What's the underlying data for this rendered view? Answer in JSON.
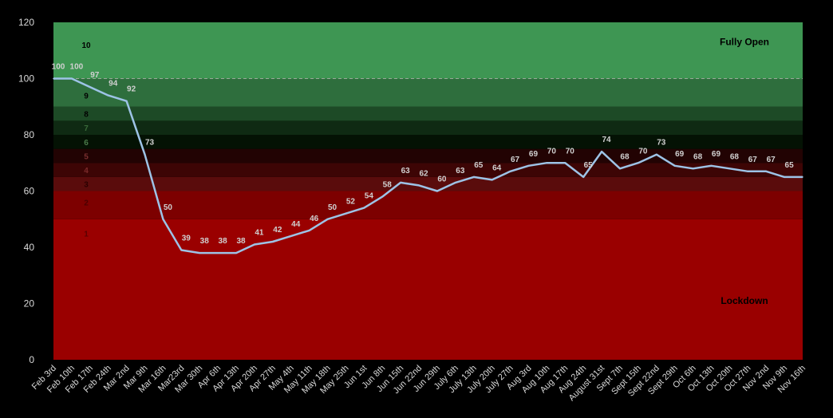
{
  "chart_data": {
    "type": "line",
    "title": "",
    "xlabel": "",
    "ylabel": "",
    "ylim": [
      0,
      120
    ],
    "yticks": [
      0,
      20,
      40,
      60,
      80,
      100,
      120
    ],
    "categories": [
      "Feb 3rd",
      "Feb 10th",
      "Feb 17th",
      "Feb 24th",
      "Mar 2nd",
      "Mar 9th",
      "Mar 16th",
      "Mar23rd",
      "Mar 30th",
      "Apr 6th",
      "Apr 13th",
      "Apr 20th",
      "Apr 27th",
      "May 4th",
      "May 11th",
      "May 18th",
      "May 25th",
      "Jun 1st",
      "Jun 8th",
      "Jun 15th",
      "Jun 22nd",
      "Jun 29th",
      "July 6th",
      "July 13th",
      "July 20th",
      "July 27th",
      "Aug 3rd",
      "Aug 10th",
      "Aug 17th",
      "Aug 24th",
      "August 31st",
      "Sept 7th",
      "Sept 15th",
      "Sept 22nd",
      "Sept 29th",
      "Oct 6th",
      "Oct 13th",
      "Oct 20th",
      "Oct 27th",
      "Nov 2nd",
      "Nov 9th",
      "Nov 16th"
    ],
    "series": [
      {
        "values": [
          100,
          100,
          97,
          94,
          92,
          73,
          50,
          39,
          38,
          38,
          38,
          41,
          42,
          44,
          46,
          50,
          52,
          54,
          58,
          63,
          62,
          60,
          63,
          65,
          64,
          67,
          69,
          70,
          70,
          65,
          74,
          68,
          70,
          73,
          69,
          68,
          69,
          68,
          67,
          67,
          65,
          65
        ],
        "labels": [
          "100",
          "100",
          "97",
          "94",
          "92",
          "73",
          "50",
          "39",
          "38",
          "38",
          "38",
          "41",
          "42",
          "44",
          "46",
          "50",
          "52",
          "54",
          "58",
          "63",
          "62",
          "60",
          "63",
          "65",
          "64",
          "67",
          "69",
          "70",
          "70",
          "65",
          "74",
          "68",
          "70",
          "73",
          "69",
          "68",
          "69",
          "68",
          "67",
          "67",
          "65",
          ""
        ],
        "color": "#9dc3e6"
      }
    ],
    "bands": [
      {
        "label": "1",
        "from": 0,
        "to": 50,
        "color": "#9a0000",
        "text_color": "#5a0000"
      },
      {
        "label": "2",
        "from": 50,
        "to": 60,
        "color": "#7d0000",
        "text_color": "#4a0000"
      },
      {
        "label": "3",
        "from": 60,
        "to": 65,
        "color": "#5a0c0c",
        "text_color": "#2a0000"
      },
      {
        "label": "4",
        "from": 65,
        "to": 70,
        "color": "#3d0505",
        "text_color": "#7a2a2a"
      },
      {
        "label": "5",
        "from": 70,
        "to": 75,
        "color": "#220303",
        "text_color": "#7a3030"
      },
      {
        "label": "6",
        "from": 75,
        "to": 80,
        "color": "#041204",
        "text_color": "#4a7a4a"
      },
      {
        "label": "7",
        "from": 80,
        "to": 85,
        "color": "#0f2a13",
        "text_color": "#3a6a3a"
      },
      {
        "label": "8",
        "from": 85,
        "to": 90,
        "color": "#1d4a26",
        "text_color": "#000000"
      },
      {
        "label": "9",
        "from": 90,
        "to": 100,
        "color": "#2e6e3d",
        "text_color": "#000000"
      },
      {
        "label": "10",
        "from": 100,
        "to": 120,
        "color": "#3e9653",
        "text_color": "#000000"
      }
    ],
    "reference_line": 100,
    "annotations": [
      {
        "text": "Fully Open",
        "y": 113
      },
      {
        "text": "Lockdown",
        "y": 21
      }
    ],
    "grid": false,
    "legend": "none"
  }
}
